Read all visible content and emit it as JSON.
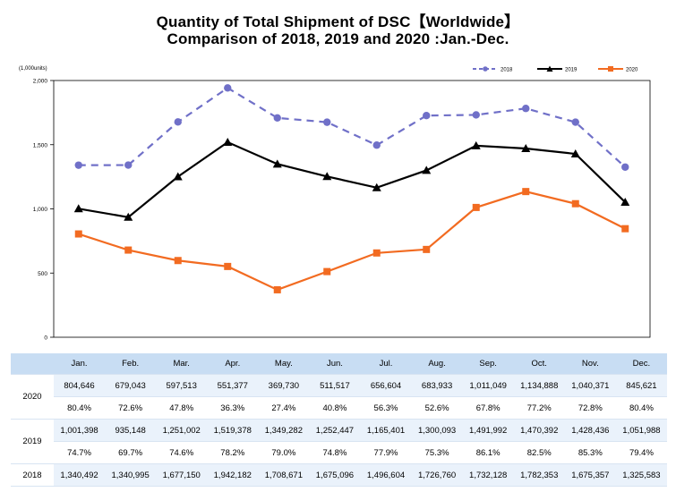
{
  "chart_data": {
    "type": "line",
    "title": "Quantity of Total Shipment of DSC【Worldwide】",
    "subtitle": "Comparison of 2018, 2019 and 2020 :Jan.-Dec.",
    "unit_label": "(1,000units)",
    "categories": [
      "Jan.",
      "Feb.",
      "Mar.",
      "Apr.",
      "May.",
      "Jun.",
      "Jul.",
      "Aug.",
      "Sep.",
      "Oct.",
      "Nov.",
      "Dec."
    ],
    "ylim": [
      0,
      2000
    ],
    "yticks": [
      0,
      500,
      1000,
      1500,
      2000
    ],
    "ytick_labels": [
      "0",
      "500",
      "1,000",
      "1,500",
      "2,000"
    ],
    "legend_position": "top-right",
    "grid": false,
    "series": [
      {
        "name": "2018",
        "color": "#7070c8",
        "style": "dashed",
        "marker": "circle",
        "values": [
          1340.492,
          1340.995,
          1677.15,
          1942.182,
          1708.671,
          1675.096,
          1496.604,
          1726.76,
          1732.128,
          1782.353,
          1675.357,
          1325.583
        ]
      },
      {
        "name": "2019",
        "color": "#000000",
        "style": "solid",
        "marker": "triangle",
        "values": [
          1001.398,
          935.148,
          1251.002,
          1519.378,
          1349.282,
          1252.447,
          1165.401,
          1300.093,
          1491.992,
          1470.392,
          1428.436,
          1051.988
        ]
      },
      {
        "name": "2020",
        "color": "#f26b21",
        "style": "solid",
        "marker": "square",
        "values": [
          804.646,
          679.043,
          597.513,
          551.377,
          369.73,
          511.517,
          656.604,
          683.933,
          1011.049,
          1134.888,
          1040.371,
          845.621
        ]
      }
    ]
  },
  "table": {
    "months": [
      "Jan.",
      "Feb.",
      "Mar.",
      "Apr.",
      "May.",
      "Jun.",
      "Jul.",
      "Aug.",
      "Sep.",
      "Oct.",
      "Nov.",
      "Dec."
    ],
    "rows": [
      {
        "year": "2020",
        "values": [
          "804,646",
          "679,043",
          "597,513",
          "551,377",
          "369,730",
          "511,517",
          "656,604",
          "683,933",
          "1,011,049",
          "1,134,888",
          "1,040,371",
          "845,621"
        ],
        "ratios": [
          "80.4%",
          "72.6%",
          "47.8%",
          "36.3%",
          "27.4%",
          "40.8%",
          "56.3%",
          "52.6%",
          "67.8%",
          "77.2%",
          "72.8%",
          "80.4%"
        ]
      },
      {
        "year": "2019",
        "values": [
          "1,001,398",
          "935,148",
          "1,251,002",
          "1,519,378",
          "1,349,282",
          "1,252,447",
          "1,165,401",
          "1,300,093",
          "1,491,992",
          "1,470,392",
          "1,428,436",
          "1,051,988"
        ],
        "ratios": [
          "74.7%",
          "69.7%",
          "74.6%",
          "78.2%",
          "79.0%",
          "74.8%",
          "77.9%",
          "75.3%",
          "86.1%",
          "82.5%",
          "85.3%",
          "79.4%"
        ]
      },
      {
        "year": "2018",
        "values": [
          "1,340,492",
          "1,340,995",
          "1,677,150",
          "1,942,182",
          "1,708,671",
          "1,675,096",
          "1,496,604",
          "1,726,760",
          "1,732,128",
          "1,782,353",
          "1,675,357",
          "1,325,583"
        ]
      }
    ]
  }
}
